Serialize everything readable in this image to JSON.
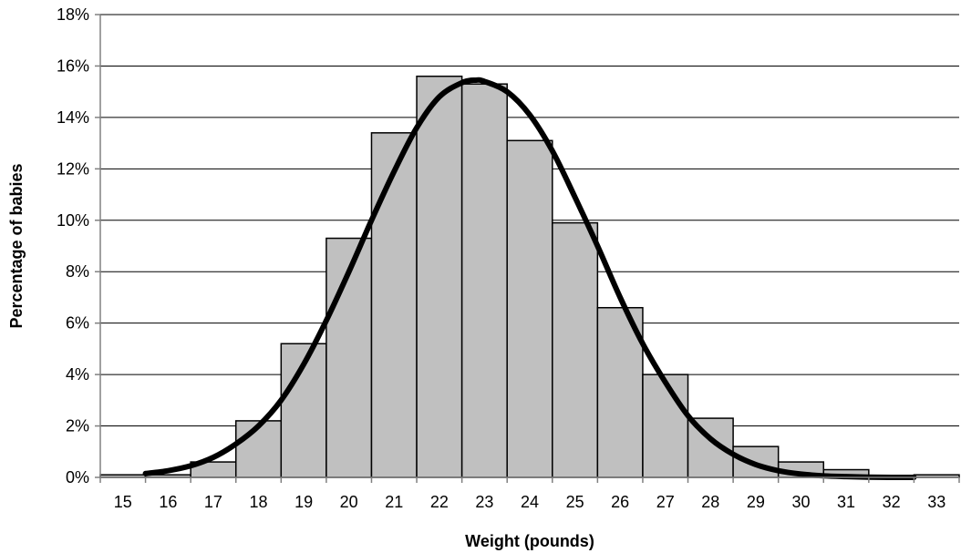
{
  "chart_data": {
    "type": "bar",
    "title": "",
    "xlabel": "Weight (pounds)",
    "ylabel": "Percentage of babies",
    "categories": [
      "15",
      "16",
      "17",
      "18",
      "19",
      "20",
      "21",
      "22",
      "23",
      "24",
      "25",
      "26",
      "27",
      "28",
      "29",
      "30",
      "31",
      "32",
      "33"
    ],
    "series": [
      {
        "type": "bar",
        "values": [
          0.1,
          0.1,
          0.6,
          2.2,
          5.2,
          9.3,
          13.4,
          15.6,
          15.3,
          13.1,
          9.9,
          6.6,
          4.0,
          2.3,
          1.2,
          0.6,
          0.3,
          0.0,
          0.1
        ]
      },
      {
        "type": "line",
        "x": [
          15.5,
          16,
          16.5,
          17,
          17.5,
          18,
          18.5,
          19,
          19.5,
          20,
          20.5,
          21,
          21.5,
          22,
          22.5,
          22.8,
          23,
          23.5,
          24,
          24.5,
          25,
          25.5,
          26,
          26.5,
          27,
          27.5,
          28,
          28.5,
          29,
          29.5,
          30,
          30.5,
          31,
          31.5,
          32,
          32.5
        ],
        "values": [
          0.15,
          0.26,
          0.45,
          0.78,
          1.3,
          2.0,
          3.0,
          4.4,
          6.1,
          8.0,
          10.0,
          11.9,
          13.6,
          14.8,
          15.35,
          15.45,
          15.4,
          15.0,
          14.1,
          12.7,
          10.9,
          9.0,
          7.0,
          5.2,
          3.7,
          2.4,
          1.5,
          0.9,
          0.5,
          0.26,
          0.13,
          0.06,
          0.03,
          0.01,
          0.0,
          0.0
        ]
      }
    ],
    "ylim": [
      0,
      18
    ],
    "yticks": [
      0,
      2,
      4,
      6,
      8,
      10,
      12,
      14,
      16,
      18
    ],
    "ytick_labels": [
      "0%",
      "2%",
      "4%",
      "6%",
      "8%",
      "10%",
      "12%",
      "14%",
      "16%",
      "18%"
    ],
    "grid": true,
    "legend": "none",
    "colors": {
      "bar_fill": "#c0c0c0",
      "bar_stroke": "#000000",
      "curve": "#000000",
      "grid": "#000000",
      "axis": "#808080"
    }
  }
}
